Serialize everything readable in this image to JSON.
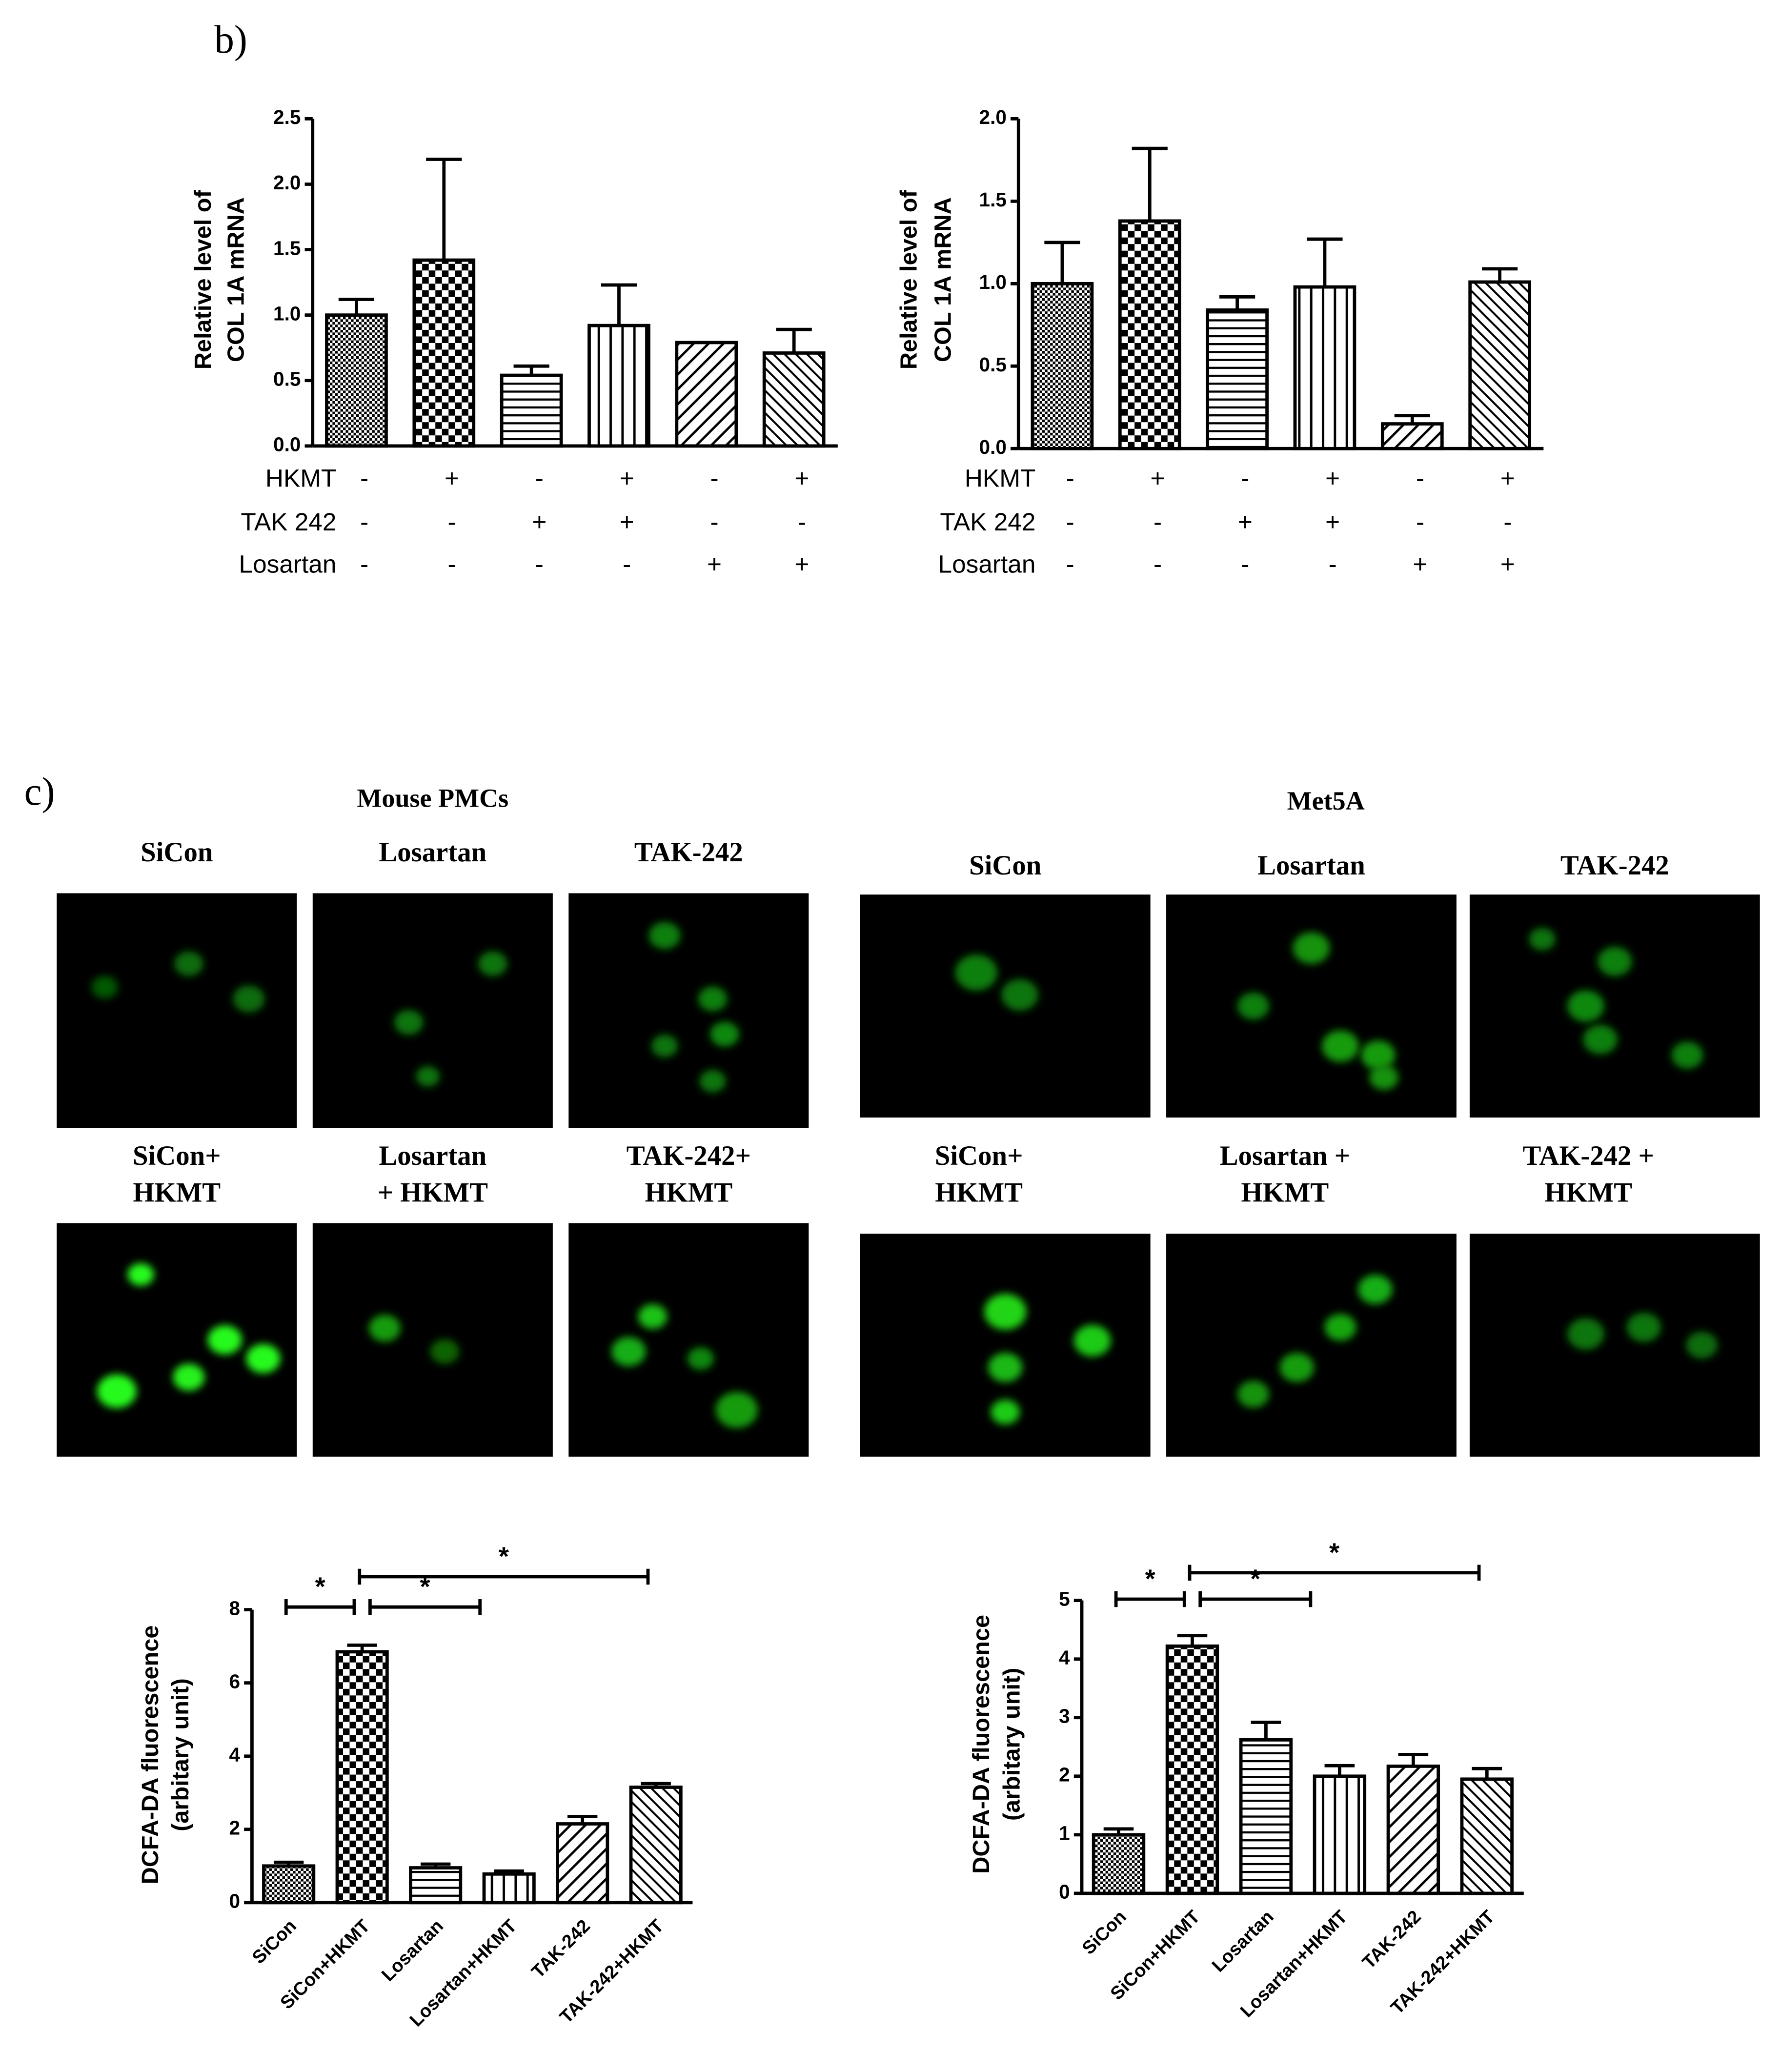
{
  "panel_labels": [
    "b)",
    "c)"
  ],
  "image_panels": [
    {
      "title": "Mouse PMCs",
      "labels": [
        [
          "SiCon"
        ],
        [
          "Losartan"
        ],
        [
          "TAK-242"
        ],
        [
          "SiCon+",
          "HKMT"
        ],
        [
          "Losartan",
          "+ HKMT"
        ],
        [
          "TAK-242+",
          "HKMT"
        ]
      ]
    },
    {
      "title": "Met5A",
      "labels": [
        [
          "SiCon"
        ],
        [
          "Losartan"
        ],
        [
          "TAK-242"
        ],
        [
          "SiCon+",
          "HKMT"
        ],
        [
          "Losartan +",
          "HKMT"
        ],
        [
          "TAK-242 +",
          "HKMT"
        ]
      ]
    }
  ],
  "chart_data": [
    {
      "type": "bar",
      "y_label": [
        "Relative level of",
        "COL 1A mRNA"
      ],
      "values": [
        1.0,
        1.42,
        0.54,
        0.92,
        0.79,
        0.71
      ],
      "errors": [
        0.12,
        0.77,
        0.07,
        0.31,
        0.0,
        0.18
      ],
      "conditions": [
        {
          "name": "HKMT",
          "values": [
            "-",
            "+",
            "-",
            "+",
            "-",
            "+"
          ]
        },
        {
          "name": "TAK 242",
          "values": [
            "-",
            "-",
            "+",
            "+",
            "-",
            "-"
          ]
        },
        {
          "name": "Losartan",
          "values": [
            "-",
            "-",
            "-",
            "-",
            "+",
            "+"
          ]
        }
      ],
      "ylim": [
        0,
        2.5
      ],
      "yticks": [
        {
          "value": 0,
          "label": "0.0"
        },
        0.5,
        {
          "value": 1,
          "label": "1.0"
        },
        1.5,
        {
          "value": 2,
          "label": "2.0"
        },
        2.5
      ]
    },
    {
      "type": "bar",
      "y_label": [
        "Relative level of",
        "COL 1A mRNA"
      ],
      "values": [
        1.0,
        1.38,
        0.84,
        0.98,
        0.15,
        1.01
      ],
      "errors": [
        0.25,
        0.44,
        0.08,
        0.29,
        0.05,
        0.08
      ],
      "conditions": [
        {
          "name": "HKMT",
          "values": [
            "-",
            "+",
            "-",
            "+",
            "-",
            "+"
          ]
        },
        {
          "name": "TAK 242",
          "values": [
            "-",
            "-",
            "+",
            "+",
            "-",
            "-"
          ]
        },
        {
          "name": "Losartan",
          "values": [
            "-",
            "-",
            "-",
            "-",
            "+",
            "+"
          ]
        }
      ],
      "ylim": [
        0,
        2
      ],
      "yticks": [
        {
          "value": 0,
          "label": "0.0"
        },
        0.5,
        {
          "value": 1,
          "label": "1.0"
        },
        1.5,
        {
          "value": 2,
          "label": "2.0"
        }
      ]
    },
    {
      "type": "bar",
      "y_label": [
        "DCFA-DA fluorescence",
        "(arbitary unit)"
      ],
      "categories": [
        "SiCon",
        "SiCon+HKMT",
        "Losartan",
        "Losartan+HKMT",
        "TAK-242",
        "TAK-242+HKMT"
      ],
      "values": [
        1.0,
        6.85,
        0.95,
        0.78,
        2.15,
        3.15
      ],
      "errors": [
        0.1,
        0.18,
        0.1,
        0.08,
        0.2,
        0.1
      ],
      "significance": [
        {
          "pair": [
            "SiCon",
            "SiCon+HKMT"
          ],
          "label": "*"
        },
        {
          "pair": [
            "SiCon+HKMT",
            "Losartan+HKMT"
          ],
          "label": "*"
        },
        {
          "pair": [
            "SiCon+HKMT",
            "TAK-242+HKMT"
          ],
          "label": "*"
        }
      ],
      "ylim": [
        0,
        8
      ],
      "yticks": [
        0,
        2,
        4,
        6,
        8
      ]
    },
    {
      "type": "bar",
      "y_label": [
        "DCFA-DA fluorescence",
        "(arbitary unit)"
      ],
      "categories": [
        "SiCon",
        "SiCon+HKMT",
        "Losartan",
        "Losartan+HKMT",
        "TAK-242",
        "TAK-242+HKMT"
      ],
      "values": [
        1.0,
        4.22,
        2.62,
        2.0,
        2.17,
        1.95
      ],
      "errors": [
        0.1,
        0.18,
        0.3,
        0.18,
        0.2,
        0.18
      ],
      "significance": [
        {
          "pair": [
            "SiCon",
            "SiCon+HKMT"
          ],
          "label": "*"
        },
        {
          "pair": [
            "SiCon+HKMT",
            "Losartan+HKMT"
          ],
          "label": "*"
        },
        {
          "pair": [
            "SiCon+HKMT",
            "TAK-242+HKMT"
          ],
          "label": "*"
        }
      ],
      "ylim": [
        0,
        5
      ],
      "yticks": [
        0,
        1,
        2,
        3,
        4,
        5
      ]
    }
  ]
}
